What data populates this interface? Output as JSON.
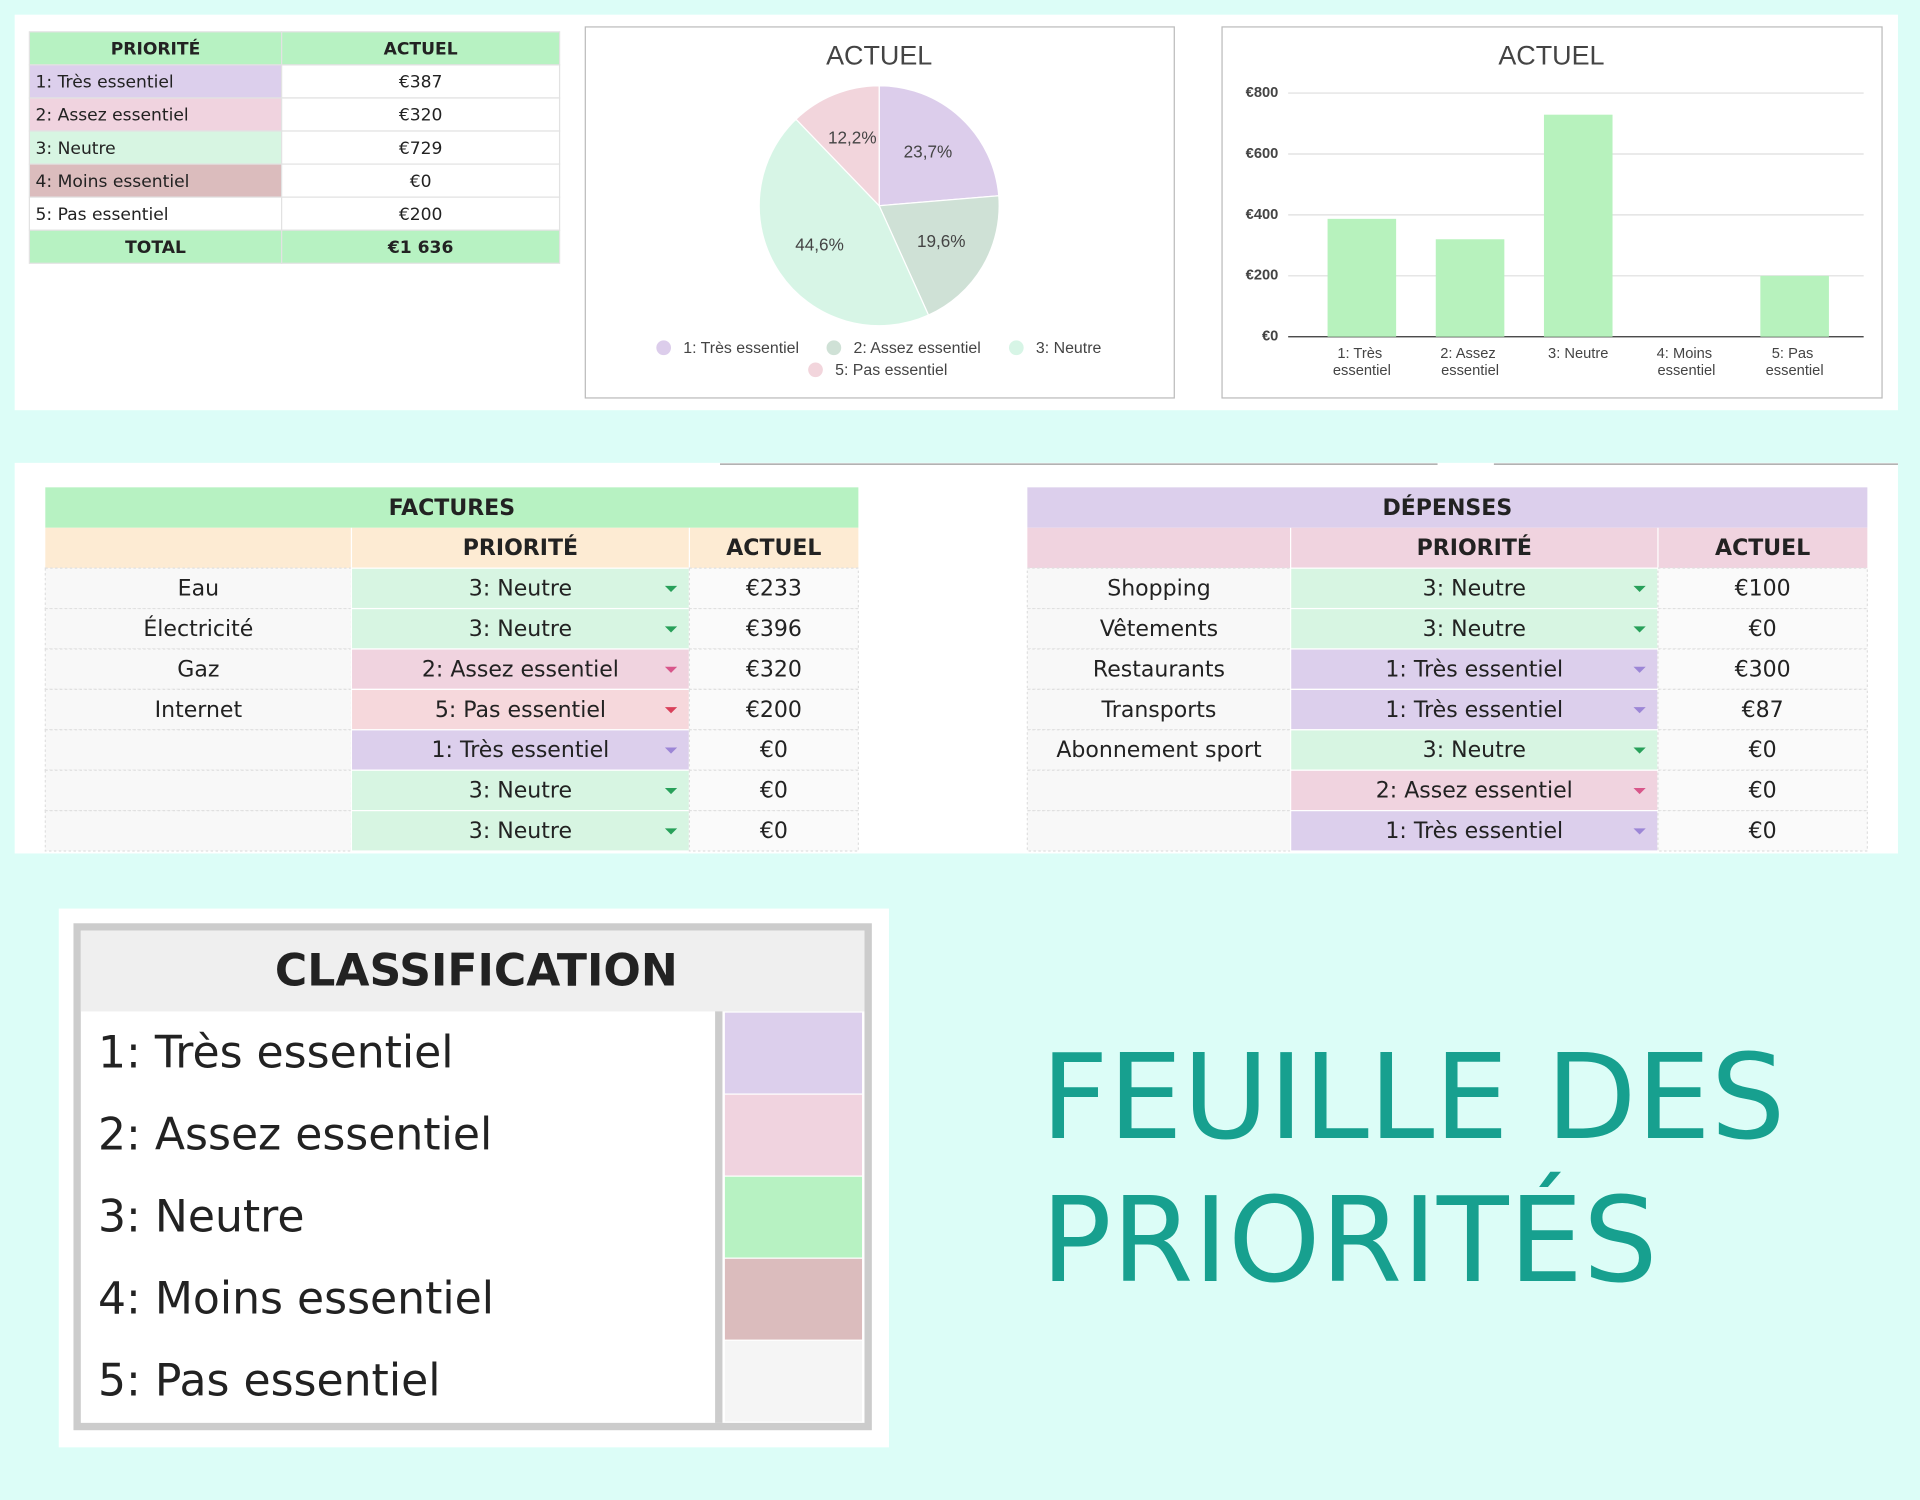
{
  "summary_table": {
    "header": [
      "PRIORITÉ",
      "ACTUEL"
    ],
    "rows": [
      [
        "1: Très essentiel",
        "€387"
      ],
      [
        "2: Assez essentiel",
        "€320"
      ],
      [
        "3: Neutre",
        "€729"
      ],
      [
        "4: Moins essentiel",
        "€0"
      ],
      [
        "5: Pas essentiel",
        "€200"
      ]
    ],
    "total": [
      "TOTAL",
      "€1 636"
    ]
  },
  "chart_data": [
    {
      "type": "pie",
      "title": "ACTUEL",
      "categories": [
        "1: Très essentiel",
        "2: Assez essentiel",
        "3: Neutre",
        "5: Pas essentiel"
      ],
      "values": [
        23.7,
        19.6,
        44.6,
        12.2
      ],
      "value_labels": [
        "23,7%",
        "19,6%",
        "44,6%",
        "12,2%"
      ],
      "colors": [
        "#dccdeb",
        "#cfe1d6",
        "#d7f5e6",
        "#f2d5dc"
      ],
      "legend": "bottom"
    },
    {
      "type": "bar",
      "title": "ACTUEL",
      "categories": [
        "1: Très essentiel",
        "2: Assez essentiel",
        "3: Neutre",
        "4: Moins essentiel",
        "5: Pas essentiel"
      ],
      "values": [
        387,
        320,
        729,
        0,
        200
      ],
      "color": "#b7f2bd",
      "ylim": [
        0,
        800
      ],
      "yticks": [
        {
          "value": 0,
          "label": "€0"
        },
        {
          "value": 200,
          "label": "€200"
        },
        {
          "value": 400,
          "label": "€400"
        },
        {
          "value": 600,
          "label": "€600"
        },
        {
          "value": 800,
          "label": "€800"
        }
      ],
      "grid": true
    }
  ],
  "factures": {
    "title": "FACTURES",
    "columns": [
      "PRIORITÉ",
      "ACTUEL"
    ],
    "rows": [
      [
        "Eau",
        "3: Neutre",
        "€233"
      ],
      [
        "Électricité",
        "3: Neutre",
        "€396"
      ],
      [
        "Gaz",
        "2: Assez essentiel",
        "€320"
      ],
      [
        "Internet",
        "5: Pas essentiel",
        "€200"
      ],
      [
        null,
        "1: Très essentiel",
        "€0"
      ],
      [
        null,
        "3: Neutre",
        "€0"
      ],
      [
        null,
        "3: Neutre",
        "€0"
      ]
    ]
  },
  "depenses": {
    "title": "DÉPENSES",
    "columns": [
      "PRIORITÉ",
      "ACTUEL"
    ],
    "rows": [
      [
        "Shopping",
        "3: Neutre",
        "€100"
      ],
      [
        "Vêtements",
        "3: Neutre",
        "€0"
      ],
      [
        "Restaurants",
        "1: Très essentiel",
        "€300"
      ],
      [
        "Transports",
        "1: Très essentiel",
        "€87"
      ],
      [
        "Abonnement sport",
        "3: Neutre",
        "€0"
      ],
      [
        null,
        "2: Assez essentiel",
        "€0"
      ],
      [
        null,
        "1: Très essentiel",
        "€0"
      ]
    ]
  },
  "classification": {
    "title": "CLASSIFICATION",
    "items": [
      "1: Très essentiel",
      "2: Assez essentiel",
      "3: Neutre",
      "4: Moins essentiel",
      "5: Pas essentiel"
    ],
    "colors": [
      "#dccfec",
      "#f0d3df",
      "#b7f2c2",
      "#dbbcbd",
      "#f5f5f5"
    ]
  },
  "title": [
    "FEUILLE DES",
    "PRIORITÉS"
  ]
}
